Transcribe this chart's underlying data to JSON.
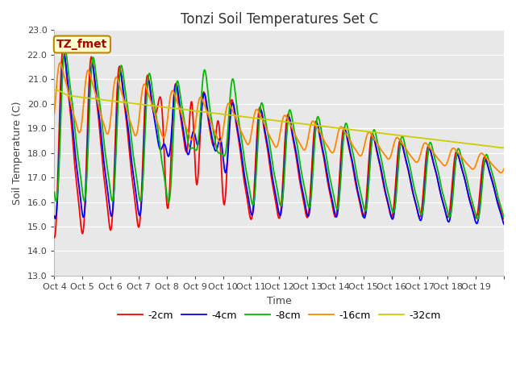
{
  "title": "Tonzi Soil Temperatures Set C",
  "xlabel": "Time",
  "ylabel": "Soil Temperature (C)",
  "ylim": [
    13.0,
    23.0
  ],
  "yticks": [
    13.0,
    14.0,
    15.0,
    16.0,
    17.0,
    18.0,
    19.0,
    20.0,
    21.0,
    22.0,
    23.0
  ],
  "x_labels": [
    "Oct 4",
    "Oct 5",
    "Oct 6",
    "Oct 7",
    "Oct 8",
    "Oct 9",
    "Oct 10",
    "Oct 11",
    "Oct 12",
    "Oct 13",
    "Oct 14",
    "Oct 15",
    "Oct 16",
    "Oct 17",
    "Oct 18",
    "Oct 19"
  ],
  "series_colors": [
    "#ff0000",
    "#0000ff",
    "#00bb00",
    "#ff8800",
    "#cccc00"
  ],
  "series_labels": [
    "-2cm",
    "-4cm",
    "-8cm",
    "-16cm",
    "-32cm"
  ],
  "annotation_text": "TZ_fmet",
  "annotation_color": "#aa0000",
  "annotation_bg": "#ffffcc",
  "plot_bg_color": "#e8e8e8",
  "title_fontsize": 12,
  "axis_fontsize": 9,
  "tick_fontsize": 8,
  "legend_fontsize": 9,
  "linewidth": 1.3
}
